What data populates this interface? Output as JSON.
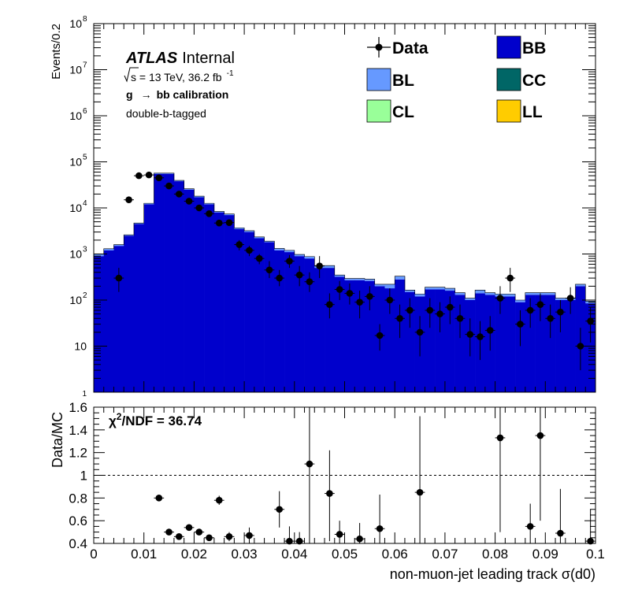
{
  "chart_data": [
    {
      "type": "bar",
      "yscale": "log",
      "ylabel": "Events/0.2",
      "xlim": [
        0,
        0.1
      ],
      "ylim": [
        1,
        100000000
      ],
      "y_tick_labels": [
        "1",
        "10",
        "10",
        "10",
        "10",
        "10",
        "10",
        "10",
        "10"
      ],
      "y_tick_exponents": [
        "",
        "",
        "2",
        "3",
        "4",
        "5",
        "6",
        "7",
        "8"
      ],
      "labels": {
        "atlas": "ATLAS",
        "internal": "Internal",
        "sqrt_s": "s",
        "energy_lumi": " = 13 TeV, 36.2 fb",
        "lumi_exponent": "-1",
        "calibration_g": "g",
        "calibration_arrow": "→",
        "calibration_rest": "bb calibration",
        "tagging": "double-b-tagged"
      },
      "legend": [
        {
          "name": "Data",
          "marker": "point"
        },
        {
          "name": "BB",
          "color": "#0000cc"
        },
        {
          "name": "BL",
          "color": "#6699ff"
        },
        {
          "name": "CC",
          "color": "#006666"
        },
        {
          "name": "CL",
          "color": "#99ff99"
        },
        {
          "name": "LL",
          "color": "#ffcc00"
        }
      ],
      "bin_width": 0.002,
      "bins_x_low": [
        0,
        0.002,
        0.004,
        0.006,
        0.008,
        0.01,
        0.012,
        0.014,
        0.016,
        0.018,
        0.02,
        0.022,
        0.024,
        0.026,
        0.028,
        0.03,
        0.032,
        0.034,
        0.036,
        0.038,
        0.04,
        0.042,
        0.044,
        0.046,
        0.048,
        0.05,
        0.052,
        0.054,
        0.056,
        0.058,
        0.06,
        0.062,
        0.064,
        0.066,
        0.068,
        0.07,
        0.072,
        0.074,
        0.076,
        0.078,
        0.08,
        0.082,
        0.084,
        0.086,
        0.088,
        0.09,
        0.092,
        0.094,
        0.096,
        0.098
      ],
      "series": [
        {
          "name": "BB",
          "values": [
            900,
            1200,
            1500,
            2500,
            4500,
            12000,
            55000,
            55000,
            38000,
            25000,
            17000,
            12000,
            8000,
            7000,
            3500,
            3000,
            2200,
            1800,
            1200,
            1100,
            900,
            800,
            500,
            500,
            320,
            270,
            270,
            260,
            200,
            180,
            280,
            150,
            120,
            170,
            170,
            160,
            130,
            100,
            140,
            130,
            120,
            120,
            90,
            130,
            130,
            130,
            100,
            100,
            200,
            85
          ]
        },
        {
          "name": "BL",
          "values": [
            100,
            100,
            100,
            100,
            200,
            600,
            2000,
            2000,
            1500,
            1000,
            1000,
            600,
            400,
            400,
            200,
            200,
            150,
            100,
            120,
            100,
            80,
            80,
            60,
            60,
            30,
            25,
            25,
            25,
            20,
            40,
            50,
            15,
            15,
            20,
            20,
            20,
            15,
            10,
            25,
            15,
            15,
            15,
            10,
            15,
            15,
            15,
            10,
            10,
            20,
            10
          ]
        }
      ],
      "data_points": [
        {
          "x": 0.005,
          "y": 300,
          "ylo": 150,
          "yhi": 500
        },
        {
          "x": 0.007,
          "y": 15000
        },
        {
          "x": 0.009,
          "y": 50000
        },
        {
          "x": 0.011,
          "y": 52000
        },
        {
          "x": 0.013,
          "y": 45000
        },
        {
          "x": 0.015,
          "y": 30000
        },
        {
          "x": 0.017,
          "y": 20000
        },
        {
          "x": 0.019,
          "y": 14000
        },
        {
          "x": 0.021,
          "y": 10000
        },
        {
          "x": 0.023,
          "y": 7500
        },
        {
          "x": 0.025,
          "y": 4700
        },
        {
          "x": 0.027,
          "y": 4800
        },
        {
          "x": 0.029,
          "y": 1600,
          "ylo": 1200,
          "yhi": 2000
        },
        {
          "x": 0.031,
          "y": 1200,
          "ylo": 900,
          "yhi": 1500
        },
        {
          "x": 0.033,
          "y": 800,
          "ylo": 600,
          "yhi": 1000
        },
        {
          "x": 0.035,
          "y": 450,
          "ylo": 300,
          "yhi": 700
        },
        {
          "x": 0.037,
          "y": 300,
          "ylo": 200,
          "yhi": 450
        },
        {
          "x": 0.039,
          "y": 700,
          "ylo": 500,
          "yhi": 950
        },
        {
          "x": 0.041,
          "y": 350,
          "ylo": 200,
          "yhi": 550
        },
        {
          "x": 0.043,
          "y": 250,
          "ylo": 150,
          "yhi": 400
        },
        {
          "x": 0.045,
          "y": 550,
          "ylo": 300,
          "yhi": 900
        },
        {
          "x": 0.047,
          "y": 80,
          "ylo": 40,
          "yhi": 140
        },
        {
          "x": 0.049,
          "y": 170,
          "ylo": 100,
          "yhi": 260
        },
        {
          "x": 0.051,
          "y": 140,
          "ylo": 80,
          "yhi": 230
        },
        {
          "x": 0.053,
          "y": 90,
          "ylo": 40,
          "yhi": 160
        },
        {
          "x": 0.055,
          "y": 120,
          "ylo": 60,
          "yhi": 200
        },
        {
          "x": 0.057,
          "y": 17,
          "ylo": 8,
          "yhi": 30
        },
        {
          "x": 0.059,
          "y": 100,
          "ylo": 50,
          "yhi": 180
        },
        {
          "x": 0.061,
          "y": 40,
          "ylo": 15,
          "yhi": 80
        },
        {
          "x": 0.063,
          "y": 60,
          "ylo": 25,
          "yhi": 110
        },
        {
          "x": 0.065,
          "y": 20,
          "ylo": 6,
          "yhi": 45
        },
        {
          "x": 0.067,
          "y": 60,
          "ylo": 25,
          "yhi": 110
        },
        {
          "x": 0.069,
          "y": 50,
          "ylo": 20,
          "yhi": 90
        },
        {
          "x": 0.071,
          "y": 70,
          "ylo": 30,
          "yhi": 120
        },
        {
          "x": 0.073,
          "y": 40,
          "ylo": 15,
          "yhi": 80
        },
        {
          "x": 0.075,
          "y": 18,
          "ylo": 6,
          "yhi": 40
        },
        {
          "x": 0.077,
          "y": 16,
          "ylo": 5,
          "yhi": 35
        },
        {
          "x": 0.079,
          "y": 22,
          "ylo": 8,
          "yhi": 45
        },
        {
          "x": 0.081,
          "y": 110,
          "ylo": 50,
          "yhi": 200
        },
        {
          "x": 0.083,
          "y": 300,
          "ylo": 150,
          "yhi": 500
        },
        {
          "x": 0.085,
          "y": 30,
          "ylo": 10,
          "yhi": 60
        },
        {
          "x": 0.087,
          "y": 60,
          "ylo": 25,
          "yhi": 110
        },
        {
          "x": 0.089,
          "y": 80,
          "ylo": 35,
          "yhi": 140
        },
        {
          "x": 0.091,
          "y": 40,
          "ylo": 15,
          "yhi": 80
        },
        {
          "x": 0.093,
          "y": 55,
          "ylo": 20,
          "yhi": 100
        },
        {
          "x": 0.095,
          "y": 110,
          "ylo": 50,
          "yhi": 190
        },
        {
          "x": 0.097,
          "y": 10,
          "ylo": 3,
          "yhi": 25
        },
        {
          "x": 0.099,
          "y": 35,
          "ylo": 12,
          "yhi": 70
        }
      ]
    },
    {
      "type": "scatter",
      "xlabel": "non-muon-jet leading track σ(d0)",
      "ylabel": "Data/MC",
      "xlim": [
        0,
        0.1
      ],
      "ylim": [
        0.4,
        1.6
      ],
      "x_ticks": [
        "0",
        "0.01",
        "0.02",
        "0.03",
        "0.04",
        "0.05",
        "0.06",
        "0.07",
        "0.08",
        "0.09",
        "0.1"
      ],
      "y_ticks": [
        "0.4",
        "0.6",
        "0.8",
        "1",
        "1.2",
        "1.4",
        "1.6"
      ],
      "reference_line": 1,
      "chi2_label": "χ",
      "chi2_exponent": "2",
      "chi2_rest": "/NDF = 36.74",
      "points": [
        {
          "x": 0.013,
          "y": 0.8,
          "ylo": 0.79,
          "yhi": 0.81
        },
        {
          "x": 0.015,
          "y": 0.5,
          "ylo": 0.49,
          "yhi": 0.51
        },
        {
          "x": 0.017,
          "y": 0.46,
          "ylo": 0.45,
          "yhi": 0.47
        },
        {
          "x": 0.019,
          "y": 0.54,
          "ylo": 0.52,
          "yhi": 0.56
        },
        {
          "x": 0.021,
          "y": 0.5,
          "ylo": 0.48,
          "yhi": 0.52
        },
        {
          "x": 0.023,
          "y": 0.45,
          "ylo": 0.43,
          "yhi": 0.47
        },
        {
          "x": 0.025,
          "y": 0.78,
          "ylo": 0.74,
          "yhi": 0.82
        },
        {
          "x": 0.027,
          "y": 0.46,
          "ylo": 0.42,
          "yhi": 0.5
        },
        {
          "x": 0.031,
          "y": 0.47,
          "ylo": 0.4,
          "yhi": 0.54
        },
        {
          "x": 0.037,
          "y": 0.7,
          "ylo": 0.54,
          "yhi": 0.86
        },
        {
          "x": 0.039,
          "y": 0.42,
          "ylo": 0.4,
          "yhi": 0.55
        },
        {
          "x": 0.041,
          "y": 0.42,
          "ylo": 0.4,
          "yhi": 0.5
        },
        {
          "x": 0.043,
          "y": 1.1,
          "ylo": 0.4,
          "yhi": 1.6
        },
        {
          "x": 0.047,
          "y": 0.84,
          "ylo": 0.42,
          "yhi": 1.22
        },
        {
          "x": 0.049,
          "y": 0.48,
          "ylo": 0.4,
          "yhi": 0.6
        },
        {
          "x": 0.053,
          "y": 0.44,
          "ylo": 0.4,
          "yhi": 0.58
        },
        {
          "x": 0.057,
          "y": 0.53,
          "ylo": 0.4,
          "yhi": 0.83
        },
        {
          "x": 0.065,
          "y": 0.85,
          "ylo": 0.4,
          "yhi": 1.52
        },
        {
          "x": 0.081,
          "y": 1.33,
          "ylo": 0.5,
          "yhi": 1.6
        },
        {
          "x": 0.087,
          "y": 0.55,
          "ylo": 0.4,
          "yhi": 0.75
        },
        {
          "x": 0.089,
          "y": 1.35,
          "ylo": 0.6,
          "yhi": 1.6
        },
        {
          "x": 0.093,
          "y": 0.49,
          "ylo": 0.4,
          "yhi": 0.88
        },
        {
          "x": 0.099,
          "y": 0.42,
          "ylo": 0.4,
          "yhi": 0.7
        }
      ]
    }
  ]
}
